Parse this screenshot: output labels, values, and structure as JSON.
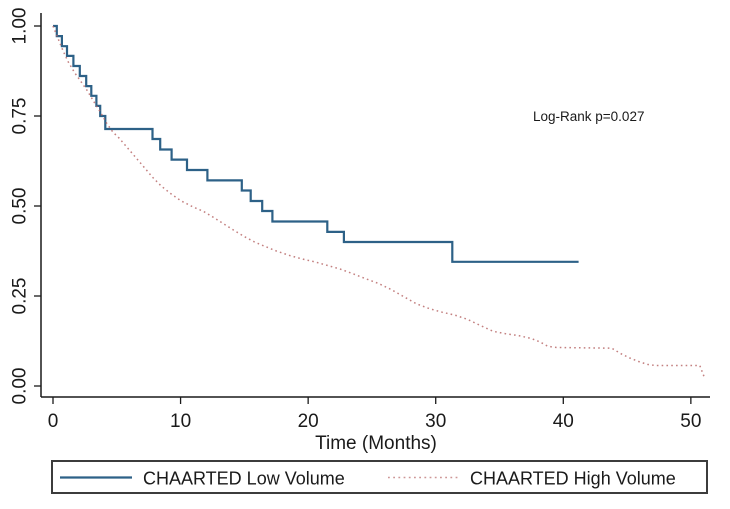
{
  "chart_data": {
    "type": "line",
    "subtype": "kaplan-meier-survival",
    "title": "",
    "xlabel": "Time (Months)",
    "ylabel": "",
    "annotation": "Log-Rank p=0.027",
    "xlim": [
      0,
      51.5
    ],
    "ylim": [
      0,
      1
    ],
    "grid": false,
    "legend_position": "bottom-boxed",
    "xticks": {
      "values": [
        0,
        10,
        20,
        30,
        40,
        50
      ],
      "labels": [
        "0",
        "10",
        "20",
        "30",
        "40",
        "50"
      ]
    },
    "yticks": {
      "values": [
        0,
        0.25,
        0.5,
        0.75,
        1
      ],
      "labels": [
        "0.00",
        "0.25",
        "0.50",
        "0.75",
        "1.00"
      ]
    },
    "axis_color": "#1a1a1a",
    "series": [
      {
        "name": "CHAARTED Low Volume",
        "color": "#2d6187",
        "line_style": "solid",
        "step": true,
        "points": [
          [
            0,
            1.0
          ],
          [
            0.3,
            0.972
          ],
          [
            0.7,
            0.944
          ],
          [
            1.1,
            0.917
          ],
          [
            1.6,
            0.889
          ],
          [
            2.1,
            0.861
          ],
          [
            2.6,
            0.833
          ],
          [
            3.0,
            0.806
          ],
          [
            3.4,
            0.778
          ],
          [
            3.7,
            0.75
          ],
          [
            4.1,
            0.714
          ],
          [
            7.8,
            0.686
          ],
          [
            8.4,
            0.657
          ],
          [
            9.3,
            0.629
          ],
          [
            10.5,
            0.6
          ],
          [
            12.1,
            0.571
          ],
          [
            14.8,
            0.543
          ],
          [
            15.5,
            0.514
          ],
          [
            16.4,
            0.486
          ],
          [
            17.2,
            0.457
          ],
          [
            21.5,
            0.428
          ],
          [
            22.8,
            0.4
          ],
          [
            31.3,
            0.345
          ],
          [
            41.2,
            0.345
          ]
        ]
      },
      {
        "name": "CHAARTED High Volume",
        "color": "#b96a6a",
        "line_style": "dotted",
        "step": false,
        "points": [
          [
            0,
            1.0
          ],
          [
            0.4,
            0.965
          ],
          [
            0.8,
            0.93
          ],
          [
            1.2,
            0.9
          ],
          [
            1.7,
            0.87
          ],
          [
            2.2,
            0.845
          ],
          [
            2.7,
            0.82
          ],
          [
            3.2,
            0.79
          ],
          [
            3.7,
            0.762
          ],
          [
            4.2,
            0.73
          ],
          [
            4.7,
            0.705
          ],
          [
            5.2,
            0.688
          ],
          [
            6.0,
            0.655
          ],
          [
            6.6,
            0.63
          ],
          [
            7.2,
            0.605
          ],
          [
            7.8,
            0.58
          ],
          [
            8.5,
            0.555
          ],
          [
            9.2,
            0.535
          ],
          [
            10.0,
            0.515
          ],
          [
            11.0,
            0.497
          ],
          [
            11.8,
            0.485
          ],
          [
            12.6,
            0.468
          ],
          [
            13.4,
            0.45
          ],
          [
            14.2,
            0.432
          ],
          [
            15.0,
            0.415
          ],
          [
            15.8,
            0.4
          ],
          [
            16.6,
            0.388
          ],
          [
            17.5,
            0.375
          ],
          [
            18.5,
            0.363
          ],
          [
            19.5,
            0.353
          ],
          [
            20.5,
            0.345
          ],
          [
            21.5,
            0.335
          ],
          [
            22.5,
            0.325
          ],
          [
            23.5,
            0.312
          ],
          [
            24.5,
            0.298
          ],
          [
            25.5,
            0.285
          ],
          [
            26.5,
            0.268
          ],
          [
            27.5,
            0.248
          ],
          [
            28.5,
            0.228
          ],
          [
            29.5,
            0.215
          ],
          [
            30.5,
            0.205
          ],
          [
            31.5,
            0.197
          ],
          [
            32.5,
            0.185
          ],
          [
            33.5,
            0.168
          ],
          [
            34.5,
            0.152
          ],
          [
            35.5,
            0.145
          ],
          [
            36.5,
            0.14
          ],
          [
            37.5,
            0.132
          ],
          [
            38.2,
            0.122
          ],
          [
            38.8,
            0.11
          ],
          [
            39.5,
            0.107
          ],
          [
            43.8,
            0.105
          ],
          [
            44.5,
            0.09
          ],
          [
            45.2,
            0.078
          ],
          [
            45.9,
            0.068
          ],
          [
            46.6,
            0.06
          ],
          [
            47.2,
            0.057
          ],
          [
            50.7,
            0.057
          ],
          [
            51.1,
            0.02
          ]
        ]
      }
    ]
  }
}
